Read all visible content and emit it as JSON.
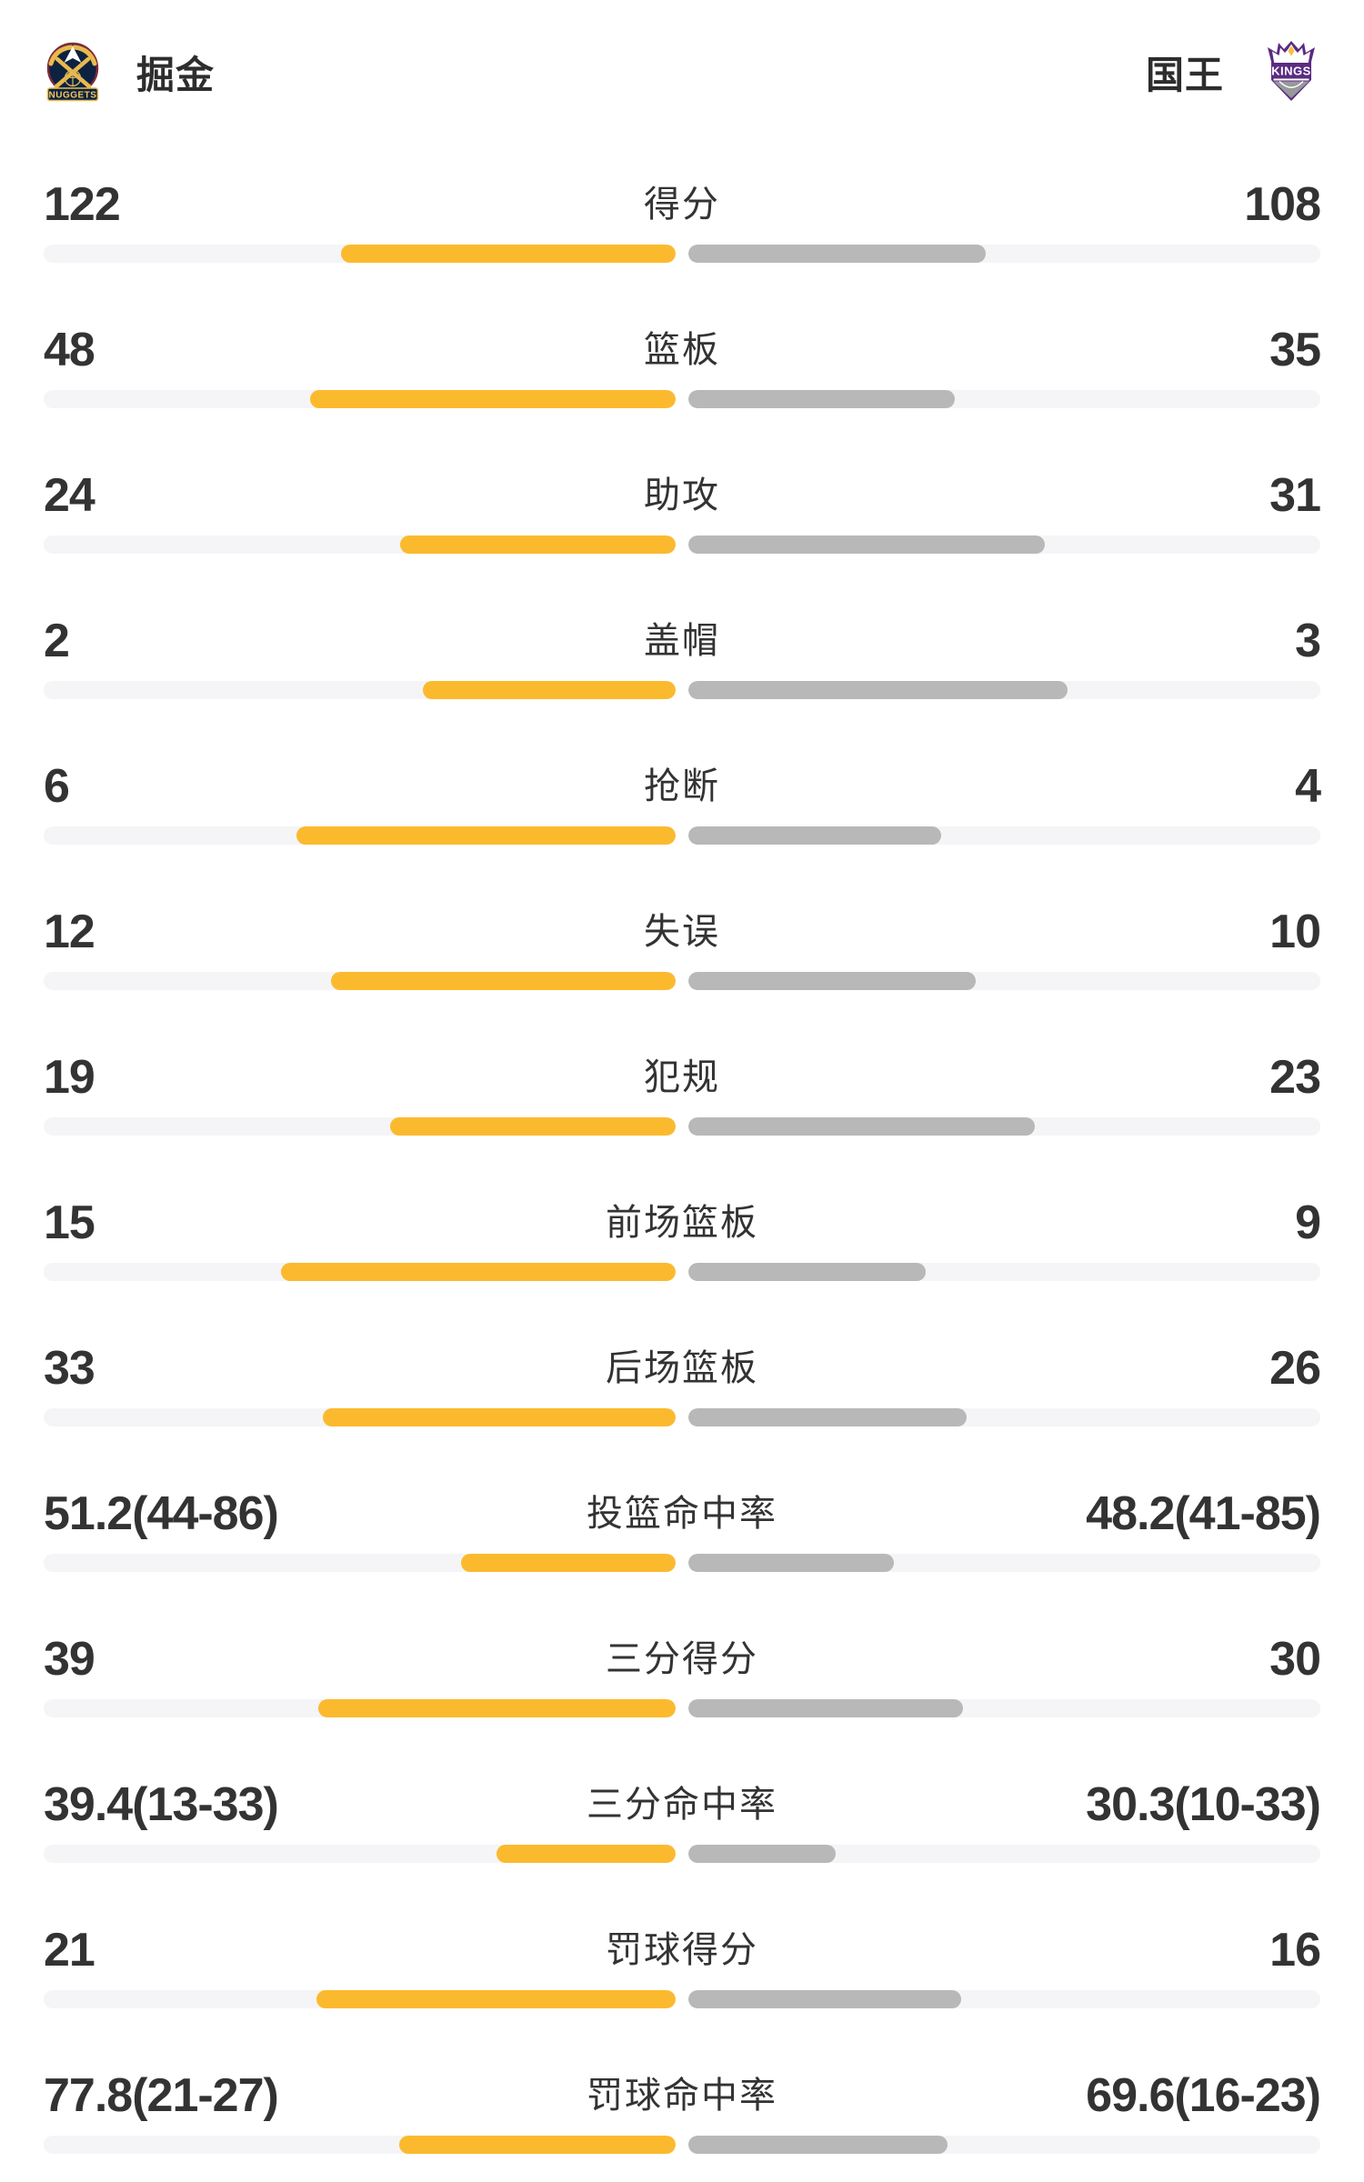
{
  "header": {
    "left_team": {
      "name": "掘金",
      "logo_icon": "nuggets-logo"
    },
    "right_team": {
      "name": "国王",
      "logo_icon": "kings-logo"
    }
  },
  "colors": {
    "left_bar": "#FBBA2E",
    "right_bar": "#B8B8B8",
    "track": "#F5F5F7",
    "text": "#333333",
    "nuggets_navy": "#0D2240",
    "nuggets_gold": "#E9B94D",
    "nuggets_maroon": "#7D2B3A",
    "kings_purple": "#5B2B82",
    "kings_gold": "#F6C13F",
    "kings_gray": "#97999B"
  },
  "chart_data": {
    "type": "bar",
    "legend": [
      "掘金",
      "国王"
    ],
    "stats": [
      {
        "label": "得分",
        "left": "122",
        "right": "108",
        "left_pct": 53.0,
        "right_pct": 47.0
      },
      {
        "label": "篮板",
        "left": "48",
        "right": "35",
        "left_pct": 57.8,
        "right_pct": 42.2
      },
      {
        "label": "助攻",
        "left": "24",
        "right": "31",
        "left_pct": 43.6,
        "right_pct": 56.4
      },
      {
        "label": "盖帽",
        "left": "2",
        "right": "3",
        "left_pct": 40.0,
        "right_pct": 60.0
      },
      {
        "label": "抢断",
        "left": "6",
        "right": "4",
        "left_pct": 60.0,
        "right_pct": 40.0
      },
      {
        "label": "失误",
        "left": "12",
        "right": "10",
        "left_pct": 54.5,
        "right_pct": 45.5
      },
      {
        "label": "犯规",
        "left": "19",
        "right": "23",
        "left_pct": 45.2,
        "right_pct": 54.8
      },
      {
        "label": "前场篮板",
        "left": "15",
        "right": "9",
        "left_pct": 62.5,
        "right_pct": 37.5
      },
      {
        "label": "后场篮板",
        "left": "33",
        "right": "26",
        "left_pct": 55.9,
        "right_pct": 44.1
      },
      {
        "label": "投篮命中率",
        "left": "51.2(44-86)",
        "right": "48.2(41-85)",
        "left_pct": 33.9,
        "right_pct": 32.5
      },
      {
        "label": "三分得分",
        "left": "39",
        "right": "30",
        "left_pct": 56.5,
        "right_pct": 43.5
      },
      {
        "label": "三分命中率",
        "left": "39.4(13-33)",
        "right": "30.3(10-33)",
        "left_pct": 28.3,
        "right_pct": 23.3
      },
      {
        "label": "罚球得分",
        "left": "21",
        "right": "16",
        "left_pct": 56.8,
        "right_pct": 43.2
      },
      {
        "label": "罚球命中率",
        "left": "77.8(21-27)",
        "right": "69.6(16-23)",
        "left_pct": 43.8,
        "right_pct": 41.0
      }
    ]
  }
}
